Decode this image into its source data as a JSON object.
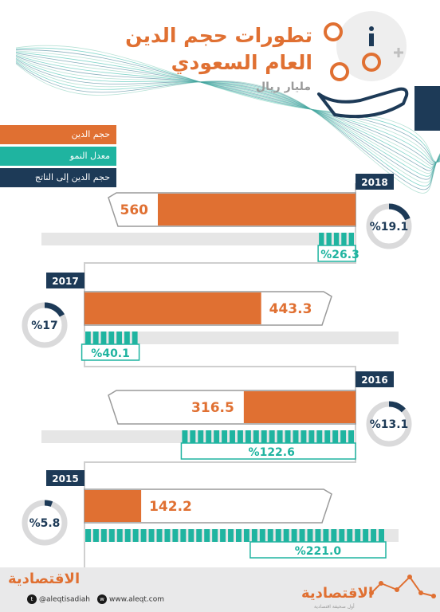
{
  "header": {
    "title_line1": "تطورات حجم الدين",
    "title_line2": "العام السعودي",
    "subtitle": "مليار ريال"
  },
  "legend": [
    {
      "label": "حجم الدين",
      "color": "#e07032"
    },
    {
      "label": "معدل النمو",
      "color": "#1fb4a0"
    },
    {
      "label": "حجم الدين إلى الناتج",
      "color": "#1d3a57"
    }
  ],
  "colors": {
    "debt": "#e07032",
    "growth": "#1fb4a0",
    "ratio": "#1d3a57",
    "track": "#e6e6e6",
    "ring": "#dadadb"
  },
  "chart_data": {
    "type": "bar",
    "categories": [
      "2018",
      "2017",
      "2016",
      "2015"
    ],
    "series": [
      {
        "name": "حجم الدين",
        "values": [
          560,
          443.3,
          316.5,
          142.2
        ]
      },
      {
        "name": "معدل النمو",
        "values": [
          26.3,
          40.1,
          122.6,
          221.0
        ]
      },
      {
        "name": "حجم الدين إلى الناتج",
        "values": [
          19.1,
          17,
          13.1,
          5.8
        ]
      }
    ],
    "labels": {
      "debt": [
        "560",
        "443.3",
        "316.5",
        "142.2"
      ],
      "growth": [
        "%26.3",
        "%40.1",
        "%122.6",
        "%221.0"
      ],
      "ratio": [
        "%19.1",
        "%17",
        "%13.1",
        "%5.8"
      ]
    },
    "title": "تطورات حجم الدين العام السعودي",
    "subtitle": "مليار ريال",
    "legend_position": "top-left"
  },
  "footer": {
    "logo_text": "الاقتصادية",
    "logo_tagline": "أول صحيفة اقتصادية",
    "twitter": "@aleqtisadiah",
    "website": "www.aleqt.com"
  }
}
